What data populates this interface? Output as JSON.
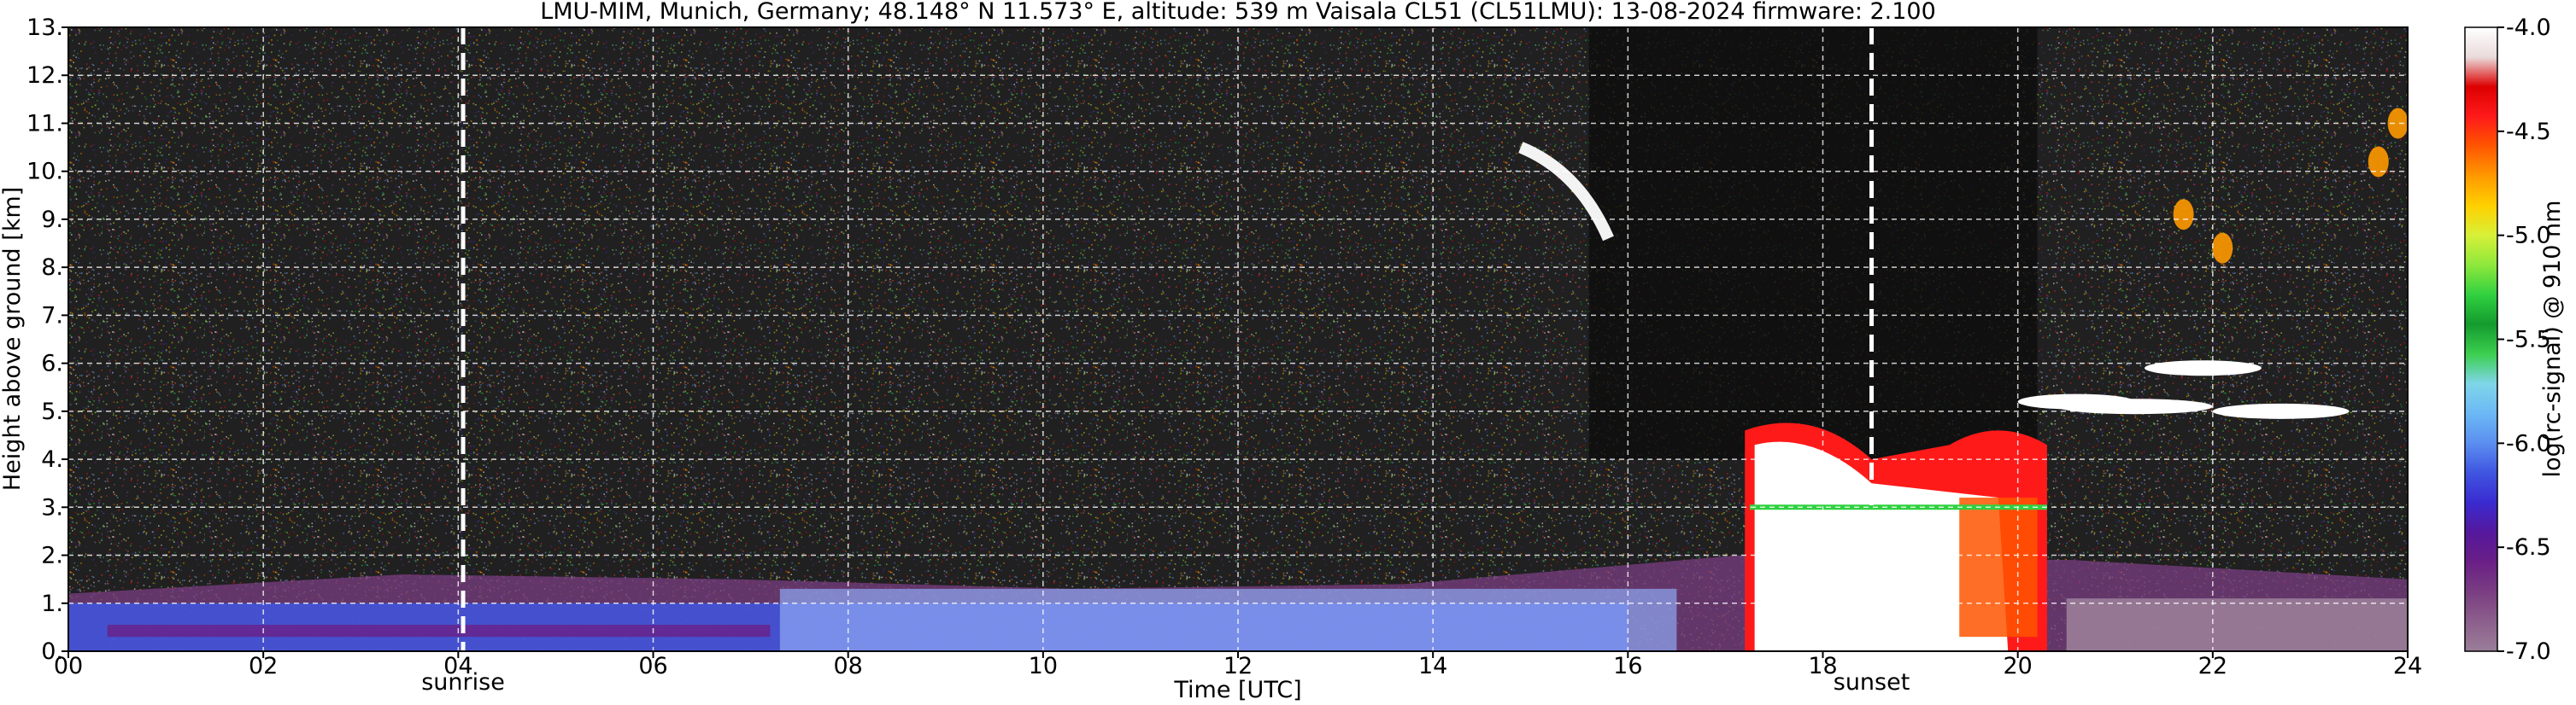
{
  "chart_data": {
    "type": "heatmap",
    "title": "LMU-MIM, Munich, Germany; 48.148° N 11.573° E, altitude: 539 m    Vaisala CL51 (CL51LMU): 13-08-2024    firmware: 2.100",
    "xlabel": "Time [UTC]",
    "ylabel": "Height above ground [km]",
    "xlim": [
      0,
      24
    ],
    "ylim": [
      0,
      13
    ],
    "x_ticks": [
      "00",
      "02",
      "04",
      "06",
      "08",
      "10",
      "12",
      "14",
      "16",
      "18",
      "20",
      "22",
      "24"
    ],
    "y_ticks": [
      "0.",
      "1.",
      "2.",
      "3.",
      "4.",
      "5.",
      "6.",
      "7.",
      "8.",
      "9.",
      "10.",
      "11.",
      "12.",
      "13."
    ],
    "grid": true,
    "colorbar": {
      "label": "log(rc-signal) @ 910 nm",
      "range": [
        -7.0,
        -4.0
      ],
      "ticks": [
        "-4.0",
        "-4.5",
        "-5.0",
        "-5.5",
        "-6.0",
        "-6.5",
        "-7.0"
      ],
      "colors": [
        "#9a7e99",
        "#8c5f8c",
        "#7a3e82",
        "#6a1f86",
        "#55189c",
        "#3a2bd0",
        "#3f55e0",
        "#5b8ef0",
        "#6bb8f5",
        "#7fd6e8",
        "#3ccf4f",
        "#149b2e",
        "#30d040",
        "#8ee83c",
        "#d8f038",
        "#ffd000",
        "#ff9900",
        "#ff5500",
        "#ff1a1a",
        "#dd0000",
        "#eadada",
        "#ffffff"
      ]
    },
    "annotations": [
      {
        "label": "sunrise",
        "x": 4.05
      },
      {
        "label": "sunset",
        "x": 18.5
      }
    ],
    "features": [
      {
        "type": "boundary_layer",
        "x": [
          0,
          24
        ],
        "y_top_km": [
          1.2,
          1.6,
          1.5,
          1.3,
          1.4,
          2.0,
          1.9,
          1.5
        ]
      },
      {
        "type": "cloud",
        "x": [
          14.9,
          15.8
        ],
        "y_km": [
          8.5,
          10.6
        ]
      },
      {
        "type": "cloud",
        "x": [
          17.2,
          20.3
        ],
        "y_km": [
          0,
          5.0
        ]
      },
      {
        "type": "cloud",
        "x": [
          20.3,
          23.2
        ],
        "y_km": [
          4.2,
          6.0
        ]
      },
      {
        "type": "cloud",
        "x": [
          21.3,
          24
        ],
        "y_km": [
          8.3,
          11.2
        ]
      }
    ]
  }
}
